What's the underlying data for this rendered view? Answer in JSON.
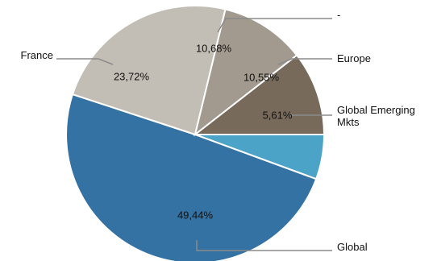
{
  "chart_data": {
    "type": "pie",
    "slices": [
      {
        "label": "Global Emerging Mkts",
        "value": 5.61,
        "display": "5,61%",
        "color": "#4ba3c7"
      },
      {
        "label": "Global",
        "value": 49.44,
        "display": "49,44%",
        "color": "#3472a3"
      },
      {
        "label": "France",
        "value": 23.72,
        "display": "23,72%",
        "color": "#c3beb5"
      },
      {
        "label": "-",
        "value": 10.68,
        "display": "10,68%",
        "color": "#a29a8e"
      },
      {
        "label": "Europe",
        "value": 10.55,
        "display": "10,55%",
        "color": "#786a5b"
      }
    ]
  }
}
